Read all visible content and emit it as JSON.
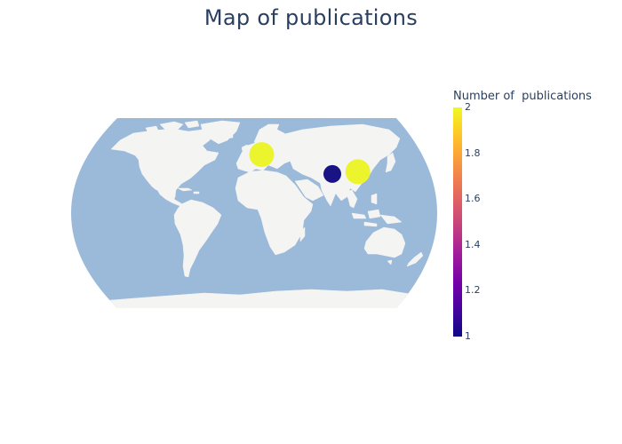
{
  "title": "Map of publications",
  "colors": {
    "ocean": "#9bb9d9",
    "land": "#f4f4f3",
    "text": "#2a3f5f"
  },
  "colorbar": {
    "title": "Number of  publications",
    "ticks": [
      "2",
      "1.8",
      "1.6",
      "1.4",
      "1.2",
      "1"
    ],
    "range": [
      1,
      2
    ],
    "colorscale": "plasma"
  },
  "markers": [
    {
      "name": "Europe",
      "lon": 10,
      "lat": 52,
      "count": 2,
      "color": "#ecf42e"
    },
    {
      "name": "China",
      "lon": 104,
      "lat": 34,
      "count": 1,
      "color": "#1a1385"
    },
    {
      "name": "Japan",
      "lon": 138,
      "lat": 36,
      "count": 2,
      "color": "#ecf42e"
    }
  ]
}
